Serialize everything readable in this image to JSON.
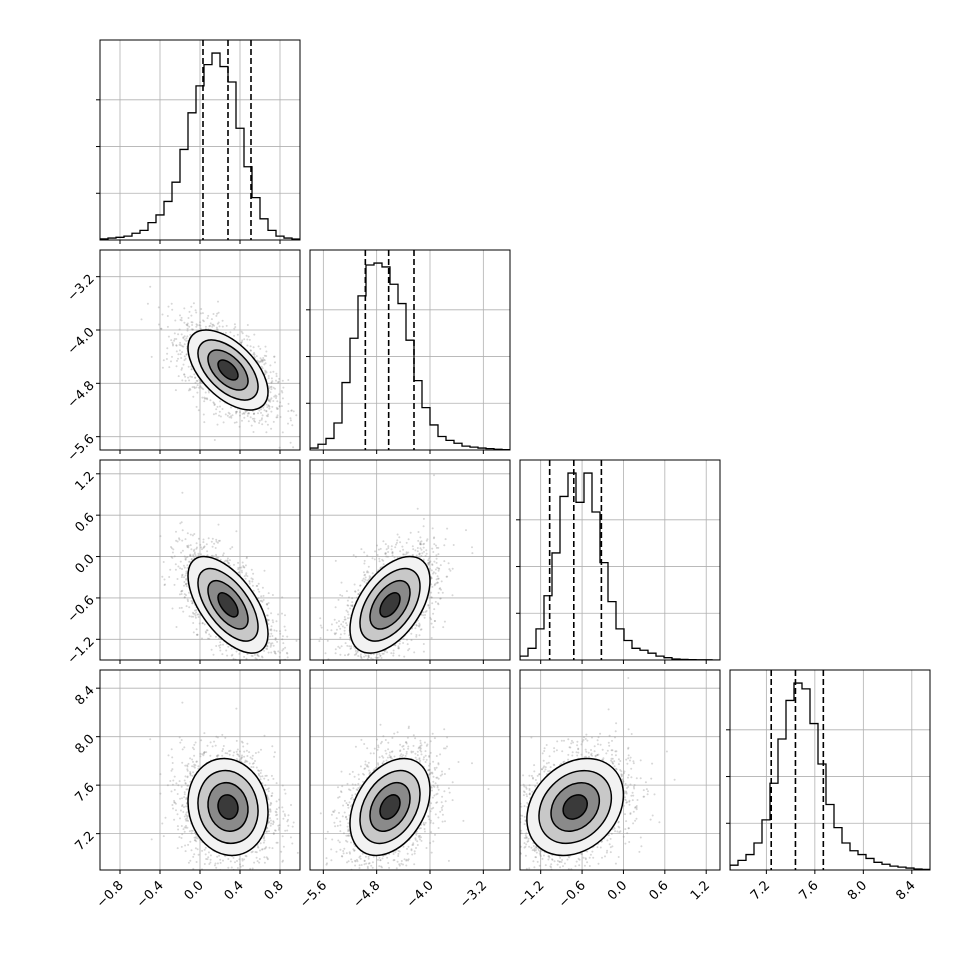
{
  "chart_data": {
    "type": "corner",
    "n_params": 4,
    "grid": true,
    "colors": {
      "line": "#000000",
      "grid": "#b0b0b0",
      "points": "#8c8c8c",
      "density": "#000000"
    },
    "params": [
      {
        "index": 0,
        "mean": 0.28,
        "sigma": 0.2,
        "quantiles": [
          0.03,
          0.28,
          0.51
        ],
        "range": [
          -1.0,
          1.0
        ],
        "ticks": [
          -0.8,
          -0.4,
          0.0,
          0.4,
          0.8
        ],
        "tick_labels": [
          "−0.8",
          "−0.4",
          "0.0",
          "0.4",
          "0.8"
        ],
        "hist_values": [
          0.006,
          0.01,
          0.014,
          0.02,
          0.035,
          0.05,
          0.09,
          0.13,
          0.2,
          0.3,
          0.47,
          0.66,
          0.8,
          0.91,
          0.97,
          0.9,
          0.82,
          0.58,
          0.38,
          0.22,
          0.11,
          0.05,
          0.02,
          0.01,
          0.005
        ]
      },
      {
        "index": 1,
        "mean": -4.6,
        "sigma": 0.3,
        "quantiles": [
          -4.97,
          -4.62,
          -4.24
        ],
        "range": [
          -5.8,
          -2.8
        ],
        "ticks": [
          -5.6,
          -4.8,
          -4.0,
          -3.2
        ],
        "tick_labels": [
          "−5.6",
          "−4.8",
          "−4.0",
          "−3.2"
        ],
        "hist_values": [
          0.01,
          0.03,
          0.06,
          0.14,
          0.35,
          0.58,
          0.8,
          0.96,
          0.97,
          0.95,
          0.86,
          0.76,
          0.57,
          0.36,
          0.22,
          0.13,
          0.07,
          0.05,
          0.035,
          0.02,
          0.015,
          0.01,
          0.007,
          0.004,
          0.002
        ]
      },
      {
        "index": 2,
        "mean": -0.7,
        "sigma": 0.35,
        "quantiles": [
          -1.07,
          -0.72,
          -0.32
        ],
        "range": [
          -1.5,
          1.4
        ],
        "ticks": [
          -1.2,
          -0.6,
          0.0,
          0.6,
          1.2
        ],
        "tick_labels": [
          "−1.2",
          "−0.6",
          "0.0",
          "0.6",
          "1.2"
        ],
        "hist_values": [
          0.02,
          0.06,
          0.16,
          0.33,
          0.55,
          0.84,
          0.96,
          0.81,
          0.96,
          0.76,
          0.5,
          0.3,
          0.16,
          0.1,
          0.06,
          0.05,
          0.035,
          0.02,
          0.012,
          0.005,
          0.003,
          0.002,
          0.001,
          0.001,
          0.0
        ]
      },
      {
        "index": 3,
        "mean": 7.42,
        "sigma": 0.2,
        "quantiles": [
          7.24,
          7.44,
          7.67
        ],
        "range": [
          6.9,
          8.55
        ],
        "ticks": [
          7.2,
          7.6,
          8.0,
          8.4
        ],
        "tick_labels": [
          "7.2",
          "7.6",
          "8.0",
          "8.4"
        ],
        "y_ticks": [
          7.2,
          7.6,
          8.0,
          8.4
        ],
        "y_tick_labels": [
          "7.2",
          "7.6",
          "8.0",
          "8.4"
        ],
        "hist_values": [
          0.025,
          0.05,
          0.08,
          0.14,
          0.26,
          0.45,
          0.68,
          0.88,
          0.97,
          0.94,
          0.76,
          0.55,
          0.34,
          0.22,
          0.14,
          0.1,
          0.08,
          0.06,
          0.04,
          0.03,
          0.02,
          0.015,
          0.01,
          0.005,
          0.003
        ]
      }
    ],
    "row_tick_overrides": {
      "1": {
        "ticks": [
          -5.6,
          -4.8,
          -4.0,
          -3.2
        ],
        "tick_labels": [
          "−5.6",
          "−4.8",
          "−4.0",
          "−3.2"
        ]
      },
      "2": {
        "ticks": [
          -1.2,
          -0.6,
          0.0,
          0.6,
          1.2
        ],
        "tick_labels": [
          "−1.2",
          "−0.6",
          "0.0",
          "0.6",
          "1.2"
        ]
      },
      "3": {
        "ticks": [
          7.2,
          7.6,
          8.0,
          8.4
        ],
        "tick_labels": [
          "7.2",
          "7.6",
          "8.0",
          "8.4"
        ]
      }
    },
    "pair_correlations": {
      "1-0": -0.55,
      "2-0": -0.6,
      "2-1": 0.5,
      "3-0": -0.1,
      "3-1": 0.35,
      "3-2": 0.25
    },
    "contour_levels_sigma": [
      0.5,
      1.0,
      1.5,
      2.0
    ],
    "samples_per_panel": 2000
  }
}
